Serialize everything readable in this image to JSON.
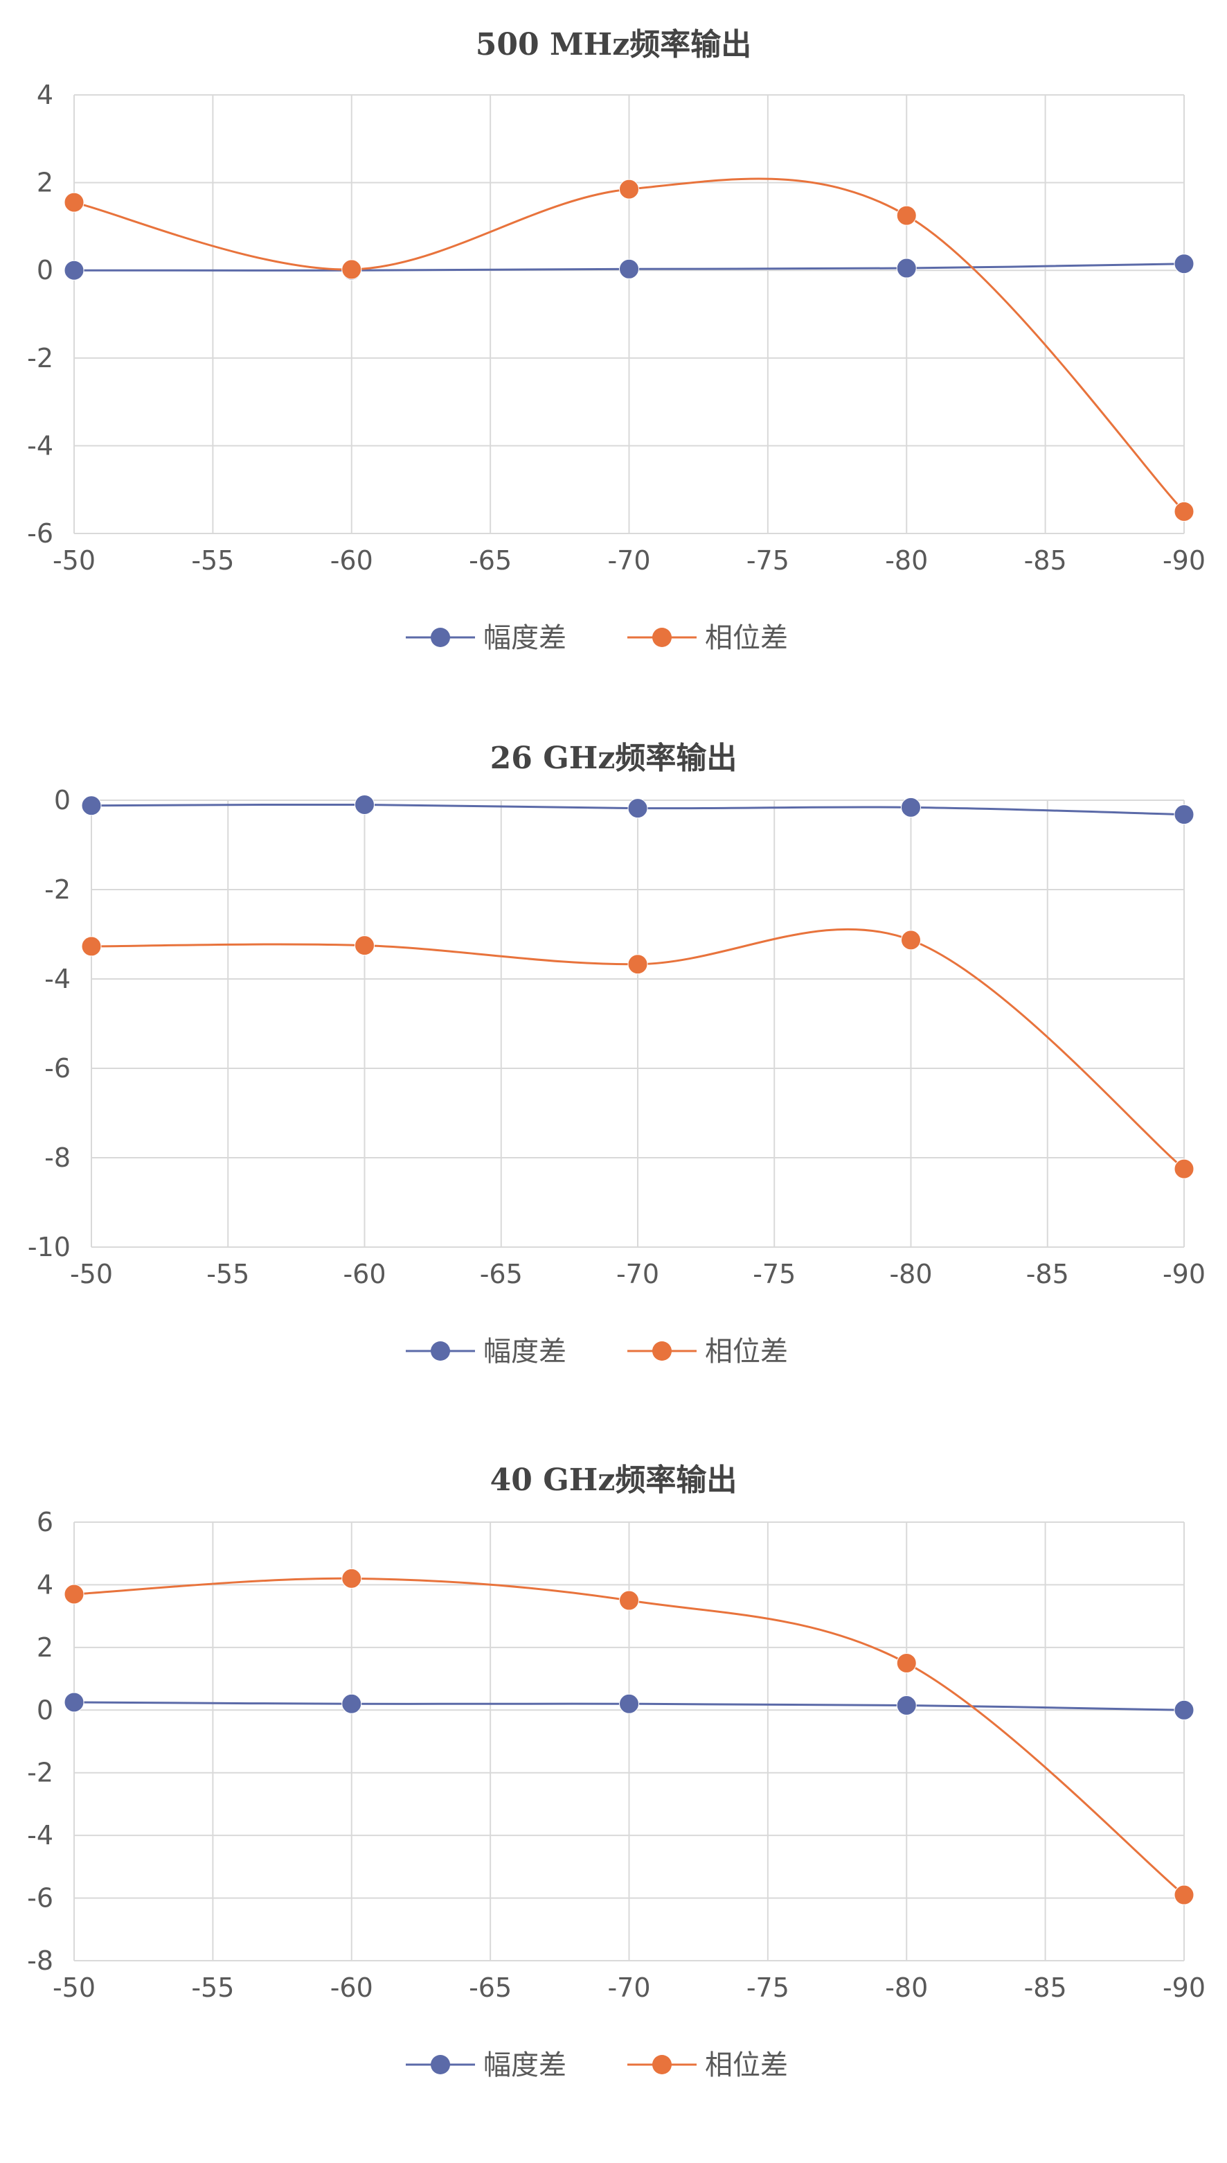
{
  "chart_data": [
    {
      "type": "line",
      "title": "500 MHz频率输出",
      "categories": [
        -50,
        -55,
        -60,
        -65,
        -70,
        -75,
        -80,
        -85,
        -90
      ],
      "x": [
        -50,
        -60,
        -70,
        -80,
        -90
      ],
      "series": [
        {
          "name": "幅度差",
          "color": "#5B6AA8",
          "values": [
            0.0,
            0.0,
            0.03,
            0.05,
            0.15
          ]
        },
        {
          "name": "相位差",
          "color": "#E8733C",
          "values": [
            1.55,
            0.02,
            1.85,
            1.25,
            -5.5
          ]
        }
      ],
      "ylim": [
        -6,
        4
      ],
      "yticks": [
        4,
        2,
        0,
        -2,
        -4,
        -6
      ],
      "grid": true,
      "legend": "bottom",
      "smooth": true
    },
    {
      "type": "line",
      "title": "26 GHz频率输出",
      "categories": [
        -50,
        -55,
        -60,
        -65,
        -70,
        -75,
        -80,
        -85,
        -90
      ],
      "x": [
        -50,
        -60,
        -70,
        -80,
        -90
      ],
      "series": [
        {
          "name": "幅度差",
          "color": "#5B6AA8",
          "values": [
            -0.12,
            -0.1,
            -0.18,
            -0.16,
            -0.32
          ]
        },
        {
          "name": "相位差",
          "color": "#E8733C",
          "values": [
            -3.27,
            -3.25,
            -3.67,
            -3.13,
            -8.25
          ]
        }
      ],
      "ylim": [
        -10,
        0
      ],
      "yticks": [
        0,
        -2,
        -4,
        -6,
        -8,
        -10
      ],
      "grid": true,
      "legend": "bottom",
      "smooth": true
    },
    {
      "type": "line",
      "title": "40 GHz频率输出",
      "categories": [
        -50,
        -55,
        -60,
        -65,
        -70,
        -75,
        -80,
        -85,
        -90
      ],
      "x": [
        -50,
        -60,
        -70,
        -80,
        -90
      ],
      "series": [
        {
          "name": "幅度差",
          "color": "#5B6AA8",
          "values": [
            0.25,
            0.2,
            0.2,
            0.15,
            0.0
          ]
        },
        {
          "name": "相位差",
          "color": "#E8733C",
          "values": [
            3.7,
            4.2,
            3.5,
            1.5,
            -5.9
          ]
        }
      ],
      "ylim": [
        -8,
        6
      ],
      "yticks": [
        6,
        4,
        2,
        0,
        -2,
        -4,
        -6,
        -8
      ],
      "grid": true,
      "legend": "bottom",
      "smooth": true
    }
  ]
}
